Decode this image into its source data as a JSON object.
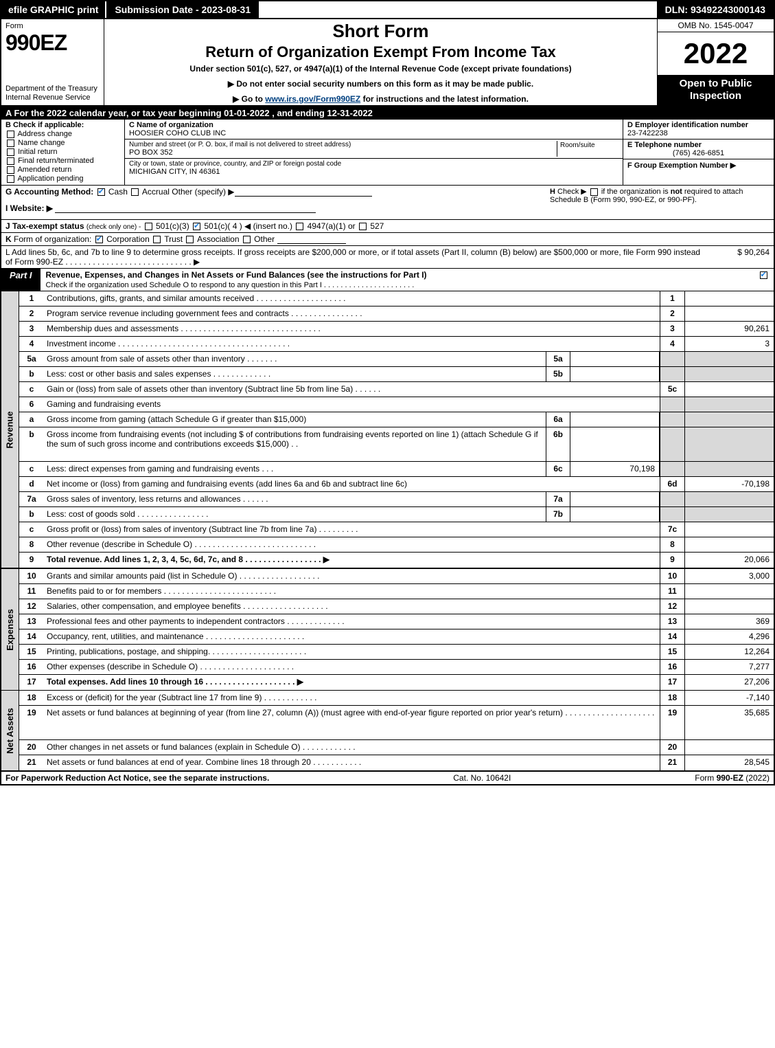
{
  "topbar": {
    "efile": "efile GRAPHIC print",
    "submission": "Submission Date - 2023-08-31",
    "dln": "DLN: 93492243000143"
  },
  "header": {
    "form": "Form",
    "code": "990EZ",
    "dept": "Department of the Treasury\nInternal Revenue Service",
    "title1": "Short Form",
    "title2": "Return of Organization Exempt From Income Tax",
    "subtitle": "Under section 501(c), 527, or 4947(a)(1) of the Internal Revenue Code (except private foundations)",
    "note1": "▶ Do not enter social security numbers on this form as it may be made public.",
    "note2_pre": "▶ Go to ",
    "note2_link": "www.irs.gov/Form990EZ",
    "note2_post": " for instructions and the latest information.",
    "omb": "OMB No. 1545-0047",
    "year": "2022",
    "open": "Open to Public Inspection"
  },
  "rowA": "A  For the 2022 calendar year, or tax year beginning 01-01-2022  , and ending 12-31-2022",
  "secB": {
    "title": "B  Check if applicable:",
    "items": [
      "Address change",
      "Name change",
      "Initial return",
      "Final return/terminated",
      "Amended return",
      "Application pending"
    ]
  },
  "secC": {
    "name_lbl": "C Name of organization",
    "name": "HOOSIER COHO CLUB INC",
    "street_lbl": "Number and street (or P. O. box, if mail is not delivered to street address)",
    "room_lbl": "Room/suite",
    "street": "PO BOX 352",
    "city_lbl": "City or town, state or province, country, and ZIP or foreign postal code",
    "city": "MICHIGAN CITY, IN  46361"
  },
  "secDEF": {
    "d_lbl": "D Employer identification number",
    "d_val": "23-7422238",
    "e_lbl": "E Telephone number",
    "e_val": "(765) 426-6851",
    "f_lbl": "F Group Exemption Number  ▶"
  },
  "secG": "G Accounting Method:",
  "g_opts": {
    "cash": "Cash",
    "accrual": "Accrual",
    "other": "Other (specify) ▶"
  },
  "secH": "H  Check ▶      if the organization is not required to attach Schedule B (Form 990, 990-EZ, or 990-PF).",
  "secI": "I Website: ▶",
  "secJ": "J Tax-exempt status (check only one) -      501(c)(3)      501(c)( 4 ) ◀ (insert no.)      4947(a)(1) or      527",
  "secK": "K Form of organization:      Corporation      Trust      Association      Other",
  "secL": {
    "text": "L Add lines 5b, 6c, and 7b to line 9 to determine gross receipts. If gross receipts are $200,000 or more, or if total assets (Part II, column (B) below) are $500,000 or more, file Form 990 instead of Form 990-EZ  .  .  .  .  .  .  .  .  .  .  .  .  .  .  .  .  .  .  .  .  .  .  .  .  .  .  .  .  ▶",
    "val": "$ 90,264"
  },
  "part1": {
    "label": "Part I",
    "title": "Revenue, Expenses, and Changes in Net Assets or Fund Balances (see the instructions for Part I)",
    "sub": "Check if the organization used Schedule O to respond to any question in this Part I . . . . . . . . . . . . . . . . . . . . . ."
  },
  "side": {
    "rev": "Revenue",
    "exp": "Expenses",
    "net": "Net Assets"
  },
  "lines_rev": [
    {
      "n": "1",
      "d": "Contributions, gifts, grants, and similar amounts received  .  .  .  .  .  .  .  .  .  .  .  .  .  .  .  .  .  .  .  .",
      "cn": "1",
      "cv": ""
    },
    {
      "n": "2",
      "d": "Program service revenue including government fees and contracts  .  .  .  .  .  .  .  .  .  .  .  .  .  .  .  .",
      "cn": "2",
      "cv": ""
    },
    {
      "n": "3",
      "d": "Membership dues and assessments  .  .  .  .  .  .  .  .  .  .  .  .  .  .  .  .  .  .  .  .  .  .  .  .  .  .  .  .  .  .  .",
      "cn": "3",
      "cv": "90,261"
    },
    {
      "n": "4",
      "d": "Investment income  .  .  .  .  .  .  .  .  .  .  .  .  .  .  .  .  .  .  .  .  .  .  .  .  .  .  .  .  .  .  .  .  .  .  .  .  .  .",
      "cn": "4",
      "cv": "3"
    },
    {
      "n": "5a",
      "d": "Gross amount from sale of assets other than inventory  .  .  .  .  .  .  .",
      "sn": "5a",
      "sv": "",
      "grey": true
    },
    {
      "n": "b",
      "d": "Less: cost or other basis and sales expenses  .  .  .  .  .  .  .  .  .  .  .  .  .",
      "sn": "5b",
      "sv": "",
      "grey": true
    },
    {
      "n": "c",
      "d": "Gain or (loss) from sale of assets other than inventory (Subtract line 5b from line 5a)  .  .  .  .  .  .",
      "cn": "5c",
      "cv": ""
    },
    {
      "n": "6",
      "d": "Gaming and fundraising events",
      "grey": true
    },
    {
      "n": "a",
      "d": "Gross income from gaming (attach Schedule G if greater than $15,000)",
      "sn": "6a",
      "sv": "",
      "grey": true
    },
    {
      "n": "b",
      "d": "Gross income from fundraising events (not including $                       of contributions from fundraising events reported on line 1) (attach Schedule G if the sum of such gross income and contributions exceeds $15,000)     .   .",
      "sn": "6b",
      "sv": "",
      "grey": true,
      "tall": true
    },
    {
      "n": "c",
      "d": "Less: direct expenses from gaming and fundraising events          .    .    .",
      "sn": "6c",
      "sv": "70,198",
      "grey": true
    },
    {
      "n": "d",
      "d": "Net income or (loss) from gaming and fundraising events (add lines 6a and 6b and subtract line 6c)",
      "cn": "6d",
      "cv": "-70,198"
    },
    {
      "n": "7a",
      "d": "Gross sales of inventory, less returns and allowances  .  .  .  .  .  .",
      "sn": "7a",
      "sv": "",
      "grey": true
    },
    {
      "n": "b",
      "d": "Less: cost of goods sold        .   .   .   .   .   .   .   .   .   .   .   .   .   .   .   .",
      "sn": "7b",
      "sv": "",
      "grey": true
    },
    {
      "n": "c",
      "d": "Gross profit or (loss) from sales of inventory (Subtract line 7b from line 7a)  .  .  .  .  .  .  .  .  .",
      "cn": "7c",
      "cv": ""
    },
    {
      "n": "8",
      "d": "Other revenue (describe in Schedule O)  .  .  .  .  .  .  .  .  .  .  .  .  .  .  .  .  .  .  .  .  .  .  .  .  .  .  .",
      "cn": "8",
      "cv": ""
    },
    {
      "n": "9",
      "d": "Total revenue. Add lines 1, 2, 3, 4, 5c, 6d, 7c, and 8   .   .   .   .   .   .   .   .   .   .   .   .   .   .   .   .   .  ▶",
      "cn": "9",
      "cv": "20,066",
      "bold": true
    }
  ],
  "lines_exp": [
    {
      "n": "10",
      "d": "Grants and similar amounts paid (list in Schedule O)  .   .   .   .   .   .   .   .   .   .   .   .   .   .   .   .   .   .",
      "cn": "10",
      "cv": "3,000"
    },
    {
      "n": "11",
      "d": "Benefits paid to or for members       .   .   .   .   .   .   .   .   .   .   .   .   .   .   .   .   .   .   .   .   .   .   .   .   .",
      "cn": "11",
      "cv": ""
    },
    {
      "n": "12",
      "d": "Salaries, other compensation, and employee benefits .   .   .   .   .   .   .   .   .   .   .   .   .   .   .   .   .   .   .",
      "cn": "12",
      "cv": ""
    },
    {
      "n": "13",
      "d": "Professional fees and other payments to independent contractors  .   .   .   .   .   .   .   .   .   .   .   .   .",
      "cn": "13",
      "cv": "369"
    },
    {
      "n": "14",
      "d": "Occupancy, rent, utilities, and maintenance .   .   .   .   .   .   .   .   .   .   .   .   .   .   .   .   .   .   .   .   .   .",
      "cn": "14",
      "cv": "4,296"
    },
    {
      "n": "15",
      "d": "Printing, publications, postage, and shipping.   .   .   .   .   .   .   .   .   .   .   .   .   .   .   .   .   .   .   .   .   .",
      "cn": "15",
      "cv": "12,264"
    },
    {
      "n": "16",
      "d": "Other expenses (describe in Schedule O)      .   .   .   .   .   .   .   .   .   .   .   .   .   .   .   .   .   .   .   .   .",
      "cn": "16",
      "cv": "7,277"
    },
    {
      "n": "17",
      "d": "Total expenses. Add lines 10 through 16      .   .   .   .   .   .   .   .   .   .   .   .   .   .   .   .   .   .   .   .  ▶",
      "cn": "17",
      "cv": "27,206",
      "bold": true
    }
  ],
  "lines_net": [
    {
      "n": "18",
      "d": "Excess or (deficit) for the year (Subtract line 17 from line 9)         .    .    .    .    .    .    .    .    .    .    .    .",
      "cn": "18",
      "cv": "-7,140"
    },
    {
      "n": "19",
      "d": "Net assets or fund balances at beginning of year (from line 27, column (A)) (must agree with end-of-year figure reported on prior year's return) .   .   .   .   .   .   .   .   .   .   .   .   .   .   .   .   .   .   .   .",
      "cn": "19",
      "cv": "35,685",
      "tall": true
    },
    {
      "n": "20",
      "d": "Other changes in net assets or fund balances (explain in Schedule O) .   .   .   .   .   .   .   .   .   .   .   .",
      "cn": "20",
      "cv": ""
    },
    {
      "n": "21",
      "d": "Net assets or fund balances at end of year. Combine lines 18 through 20 .   .   .   .   .   .   .   .   .   .   .",
      "cn": "21",
      "cv": "28,545"
    }
  ],
  "bottom": {
    "left": "For Paperwork Reduction Act Notice, see the separate instructions.",
    "mid": "Cat. No. 10642I",
    "right": "Form 990-EZ (2022)"
  },
  "colors": {
    "black": "#000000",
    "grey": "#d9d9d9",
    "link": "#004080",
    "check": "#1a7de0"
  }
}
